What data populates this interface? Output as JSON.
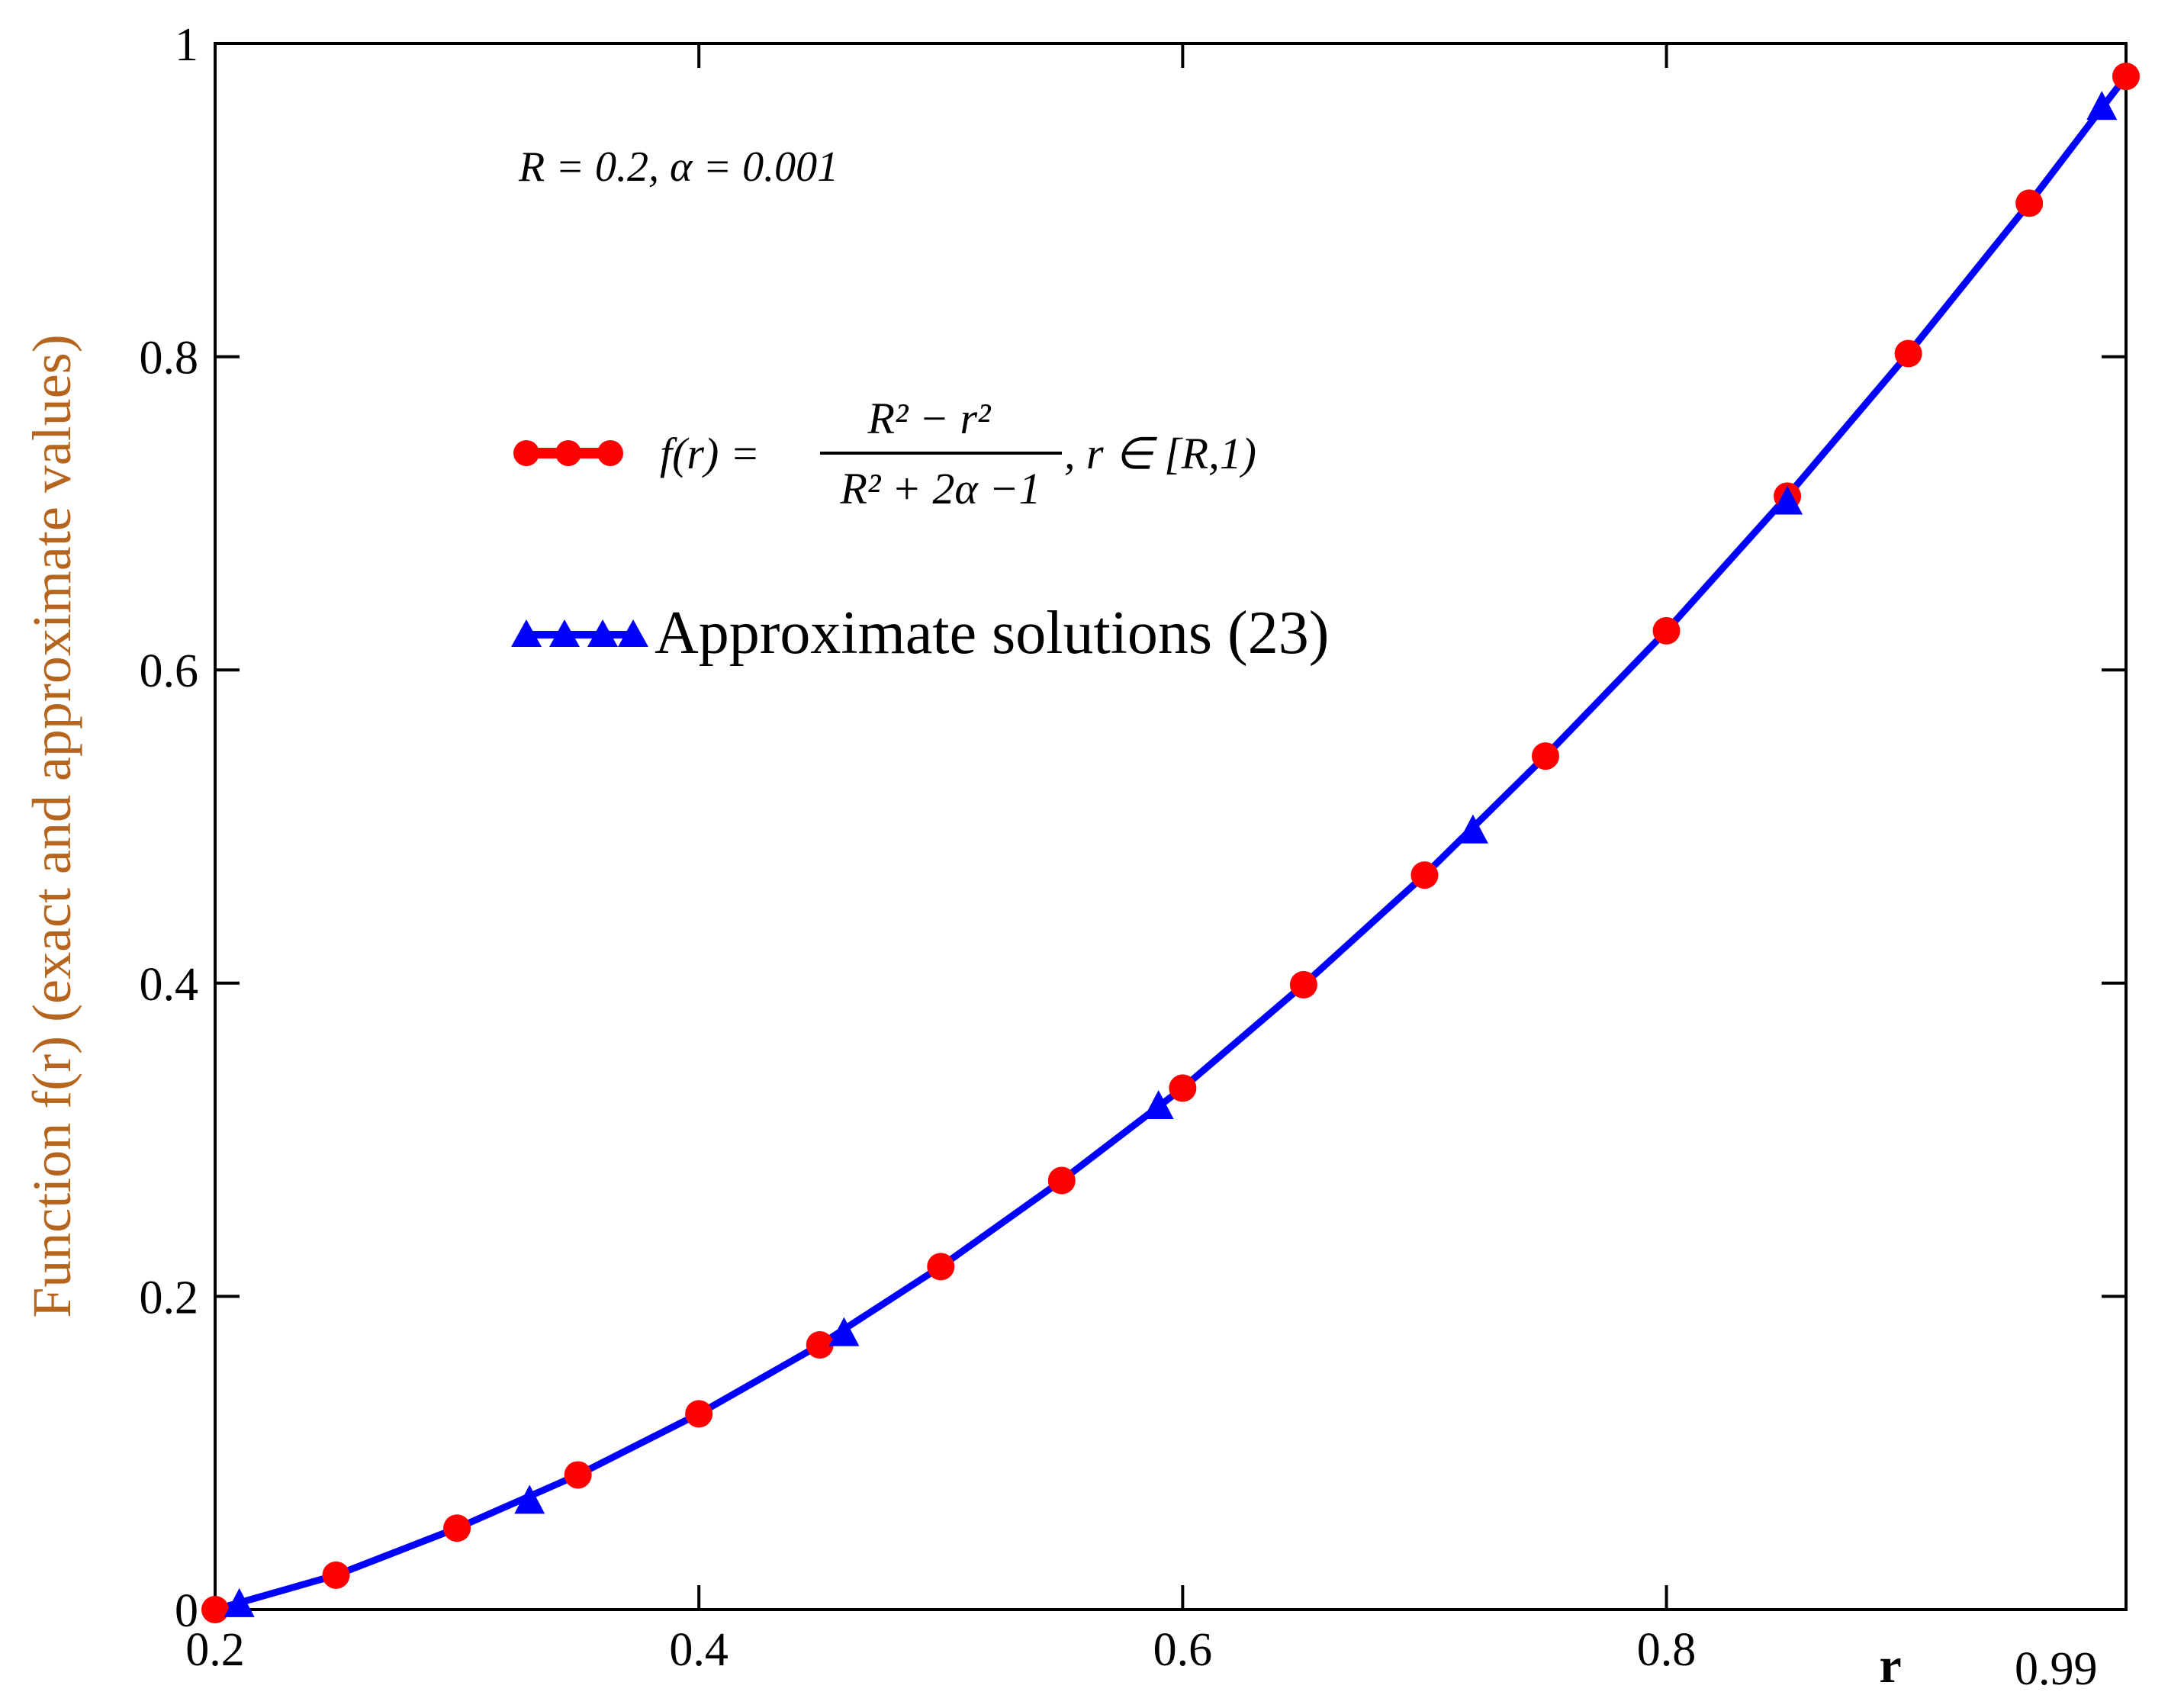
{
  "chart_data": {
    "type": "line",
    "xlabel": "r",
    "ylabel": "Function f(r) (exact and approximate values)",
    "xlim": [
      0.2,
      0.99
    ],
    "ylim": [
      0,
      1
    ],
    "x_ticks": [
      {
        "value": 0.2,
        "label": "0.2"
      },
      {
        "value": 0.4,
        "label": "0.4"
      },
      {
        "value": 0.6,
        "label": "0.6"
      },
      {
        "value": 0.8,
        "label": "0.8"
      },
      {
        "value": 0.99,
        "label": "0.99"
      }
    ],
    "y_ticks": [
      {
        "value": 0,
        "label": "0"
      },
      {
        "value": 0.2,
        "label": "0.2"
      },
      {
        "value": 0.4,
        "label": "0.4"
      },
      {
        "value": 0.6,
        "label": "0.6"
      },
      {
        "value": 0.8,
        "label": "0.8"
      },
      {
        "value": 1,
        "label": "1"
      }
    ],
    "annotation": "R = 0.2, α = 0.001",
    "legend": {
      "placement": "upper-left",
      "exact": {
        "prefix": "f(r) =",
        "numerator": "R² − r²",
        "denominator": "R² + 2α −1",
        "suffix": ", r ∈ [R,1)"
      },
      "approx": {
        "label": "Approximate solutions (23)"
      }
    },
    "series": [
      {
        "marker": "circle",
        "line": false,
        "color": "#ff0000",
        "x": [
          0.2,
          0.25,
          0.3,
          0.35,
          0.4,
          0.45,
          0.5,
          0.55,
          0.6,
          0.65,
          0.7,
          0.75,
          0.8,
          0.85,
          0.9,
          0.95,
          0.99
        ],
        "y": [
          0,
          0.022,
          0.052,
          0.086,
          0.125,
          0.169,
          0.219,
          0.274,
          0.333,
          0.399,
          0.469,
          0.545,
          0.625,
          0.711,
          0.802,
          0.898,
          0.979
        ]
      },
      {
        "marker": "triangle",
        "line": true,
        "color": "#0000ff",
        "x": [
          0.2,
          0.25,
          0.3,
          0.35,
          0.4,
          0.45,
          0.5,
          0.55,
          0.6,
          0.65,
          0.7,
          0.75,
          0.8,
          0.85,
          0.9,
          0.95,
          0.99
        ],
        "y": [
          0,
          0.022,
          0.052,
          0.086,
          0.125,
          0.169,
          0.219,
          0.274,
          0.333,
          0.399,
          0.469,
          0.545,
          0.625,
          0.711,
          0.802,
          0.898,
          0.979
        ],
        "marker_x": [
          0.21,
          0.33,
          0.46,
          0.59,
          0.72,
          0.85,
          0.98
        ],
        "marker_y": [
          0.003,
          0.069,
          0.176,
          0.321,
          0.497,
          0.707,
          0.959
        ]
      }
    ]
  }
}
